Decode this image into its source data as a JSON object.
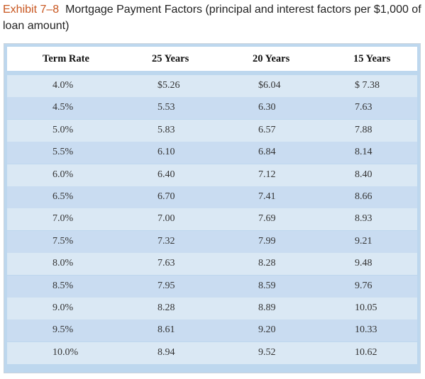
{
  "caption": {
    "exhibit": "Exhibit 7–8",
    "title": "Mortgage Payment Factors (principal and interest factors per $1,000 of loan amount)"
  },
  "table": {
    "headers": [
      "Term Rate",
      "25 Years",
      "20 Years",
      "15 Years"
    ],
    "rows": [
      [
        "4.0%",
        "$5.26",
        "$6.04",
        "$ 7.38"
      ],
      [
        "4.5%",
        "5.53",
        "6.30",
        "7.63"
      ],
      [
        "5.0%",
        "5.83",
        "6.57",
        "7.88"
      ],
      [
        "5.5%",
        "6.10",
        "6.84",
        "8.14"
      ],
      [
        "6.0%",
        "6.40",
        "7.12",
        "8.40"
      ],
      [
        "6.5%",
        "6.70",
        "7.41",
        "8.66"
      ],
      [
        "7.0%",
        "7.00",
        "7.69",
        "8.93"
      ],
      [
        "7.5%",
        "7.32",
        "7.99",
        "9.21"
      ],
      [
        "8.0%",
        "7.63",
        "8.28",
        "9.48"
      ],
      [
        "8.5%",
        "7.95",
        "8.59",
        "9.76"
      ],
      [
        "9.0%",
        "8.28",
        "8.89",
        "10.05"
      ],
      [
        "9.5%",
        "8.61",
        "9.20",
        "10.33"
      ],
      [
        "10.0%",
        "8.94",
        "9.52",
        "10.62"
      ]
    ]
  }
}
